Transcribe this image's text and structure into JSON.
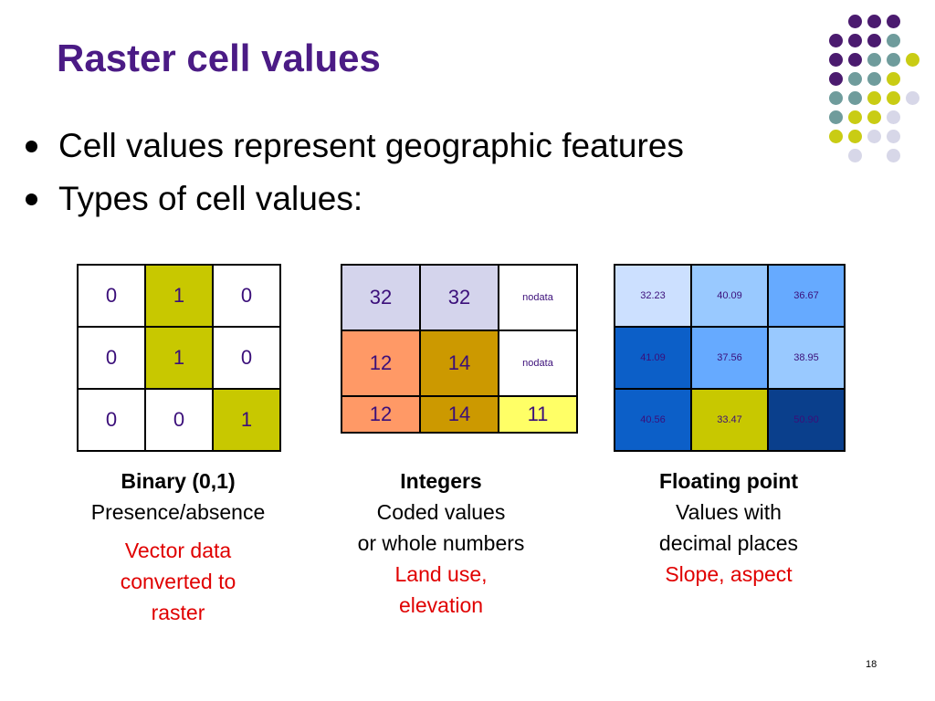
{
  "slide": {
    "title": "Raster cell values",
    "bullets": [
      "Cell values represent geographic features",
      "Types of cell values:"
    ],
    "page_number": "18"
  },
  "decoration": {
    "dot_colors": {
      "purple": "#4b1b6f",
      "teal": "#6f9c9c",
      "yellow": "#c9cc14",
      "lavender": "#d7d7e8"
    }
  },
  "grids": {
    "binary": {
      "rows": [
        [
          {
            "v": "0",
            "bg": "#ffffff"
          },
          {
            "v": "1",
            "bg": "#c8c800"
          },
          {
            "v": "0",
            "bg": "#ffffff"
          }
        ],
        [
          {
            "v": "0",
            "bg": "#ffffff"
          },
          {
            "v": "1",
            "bg": "#c8c800"
          },
          {
            "v": "0",
            "bg": "#ffffff"
          }
        ],
        [
          {
            "v": "0",
            "bg": "#ffffff"
          },
          {
            "v": "0",
            "bg": "#ffffff"
          },
          {
            "v": "1",
            "bg": "#c8c800"
          }
        ]
      ]
    },
    "integer": {
      "rows": [
        [
          {
            "v": "32",
            "bg": "#d4d4ec"
          },
          {
            "v": "32",
            "bg": "#d4d4ec"
          },
          {
            "v": "nodata",
            "bg": "#ffffff",
            "small": true
          }
        ],
        [
          {
            "v": "12",
            "bg": "#ff9966"
          },
          {
            "v": "14",
            "bg": "#cc9900"
          },
          {
            "v": "nodata",
            "bg": "#ffffff",
            "small": true
          }
        ],
        [
          {
            "v": "12",
            "bg": "#ff9966"
          },
          {
            "v": "14",
            "bg": "#cc9900"
          },
          {
            "v": "11",
            "bg": "#ffff66"
          }
        ]
      ]
    },
    "float": {
      "rows": [
        [
          {
            "v": "32.23",
            "bg": "#cce0ff"
          },
          {
            "v": "40.09",
            "bg": "#99c9ff"
          },
          {
            "v": "36.67",
            "bg": "#66aaff"
          }
        ],
        [
          {
            "v": "41.09",
            "bg": "#0c5fc8"
          },
          {
            "v": "37.56",
            "bg": "#66aaff"
          },
          {
            "v": "38.95",
            "bg": "#99c9ff"
          }
        ],
        [
          {
            "v": "40.56",
            "bg": "#0c5fc8"
          },
          {
            "v": "33.47",
            "bg": "#c8c800"
          },
          {
            "v": "50.90",
            "bg": "#0a3f8c"
          }
        ]
      ]
    }
  },
  "captions": {
    "binary": {
      "head": "Binary (0,1)",
      "line1": "Presence/absence",
      "red": [
        "Vector data",
        "converted to",
        "raster"
      ]
    },
    "integer": {
      "head": "Integers",
      "line1": "Coded values",
      "line2": "or whole numbers",
      "red": [
        "Land use,",
        "elevation"
      ]
    },
    "float": {
      "head": "Floating point",
      "line1": "Values with",
      "line2": "decimal places",
      "red": [
        "Slope, aspect"
      ]
    }
  }
}
